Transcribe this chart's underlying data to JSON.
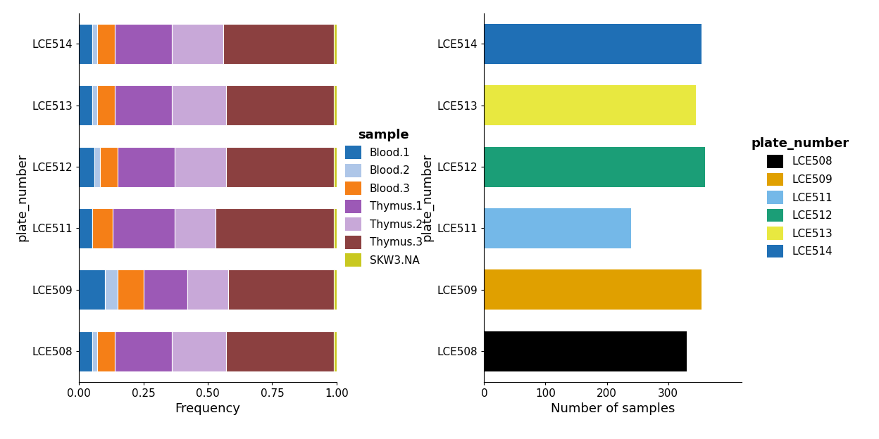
{
  "plates": [
    "LCE508",
    "LCE509",
    "LCE511",
    "LCE512",
    "LCE513",
    "LCE514"
  ],
  "sample_labels": [
    "Blood.1",
    "Blood.2",
    "Blood.3",
    "Thymus.1",
    "Thymus.2",
    "Thymus.3",
    "SKW3.NA"
  ],
  "sample_colors": [
    "#2171b5",
    "#aec6e8",
    "#f57f17",
    "#9c59b6",
    "#c8a8d8",
    "#8b4040",
    "#c8c820"
  ],
  "freq_data": {
    "LCE508": [
      0.05,
      0.02,
      0.07,
      0.22,
      0.21,
      0.42,
      0.01
    ],
    "LCE509": [
      0.1,
      0.05,
      0.1,
      0.17,
      0.16,
      0.41,
      0.01
    ],
    "LCE511": [
      0.05,
      0.0,
      0.08,
      0.24,
      0.16,
      0.46,
      0.01
    ],
    "LCE512": [
      0.06,
      0.02,
      0.07,
      0.22,
      0.2,
      0.42,
      0.01
    ],
    "LCE513": [
      0.05,
      0.02,
      0.07,
      0.22,
      0.21,
      0.42,
      0.01
    ],
    "LCE514": [
      0.05,
      0.02,
      0.07,
      0.22,
      0.2,
      0.43,
      0.01
    ]
  },
  "count_data": {
    "LCE508": 330,
    "LCE509": 355,
    "LCE511": 240,
    "LCE512": 360,
    "LCE513": 345,
    "LCE514": 355
  },
  "plate_colors": {
    "LCE508": "#000000",
    "LCE509": "#e0a000",
    "LCE511": "#74b8e8",
    "LCE512": "#1b9e77",
    "LCE513": "#e8e840",
    "LCE514": "#1f6fb5"
  },
  "background_color": "#ffffff",
  "axis_label_fontsize": 13,
  "tick_fontsize": 11,
  "legend_title_fontsize": 13,
  "legend_fontsize": 11,
  "bar_height": 0.65
}
